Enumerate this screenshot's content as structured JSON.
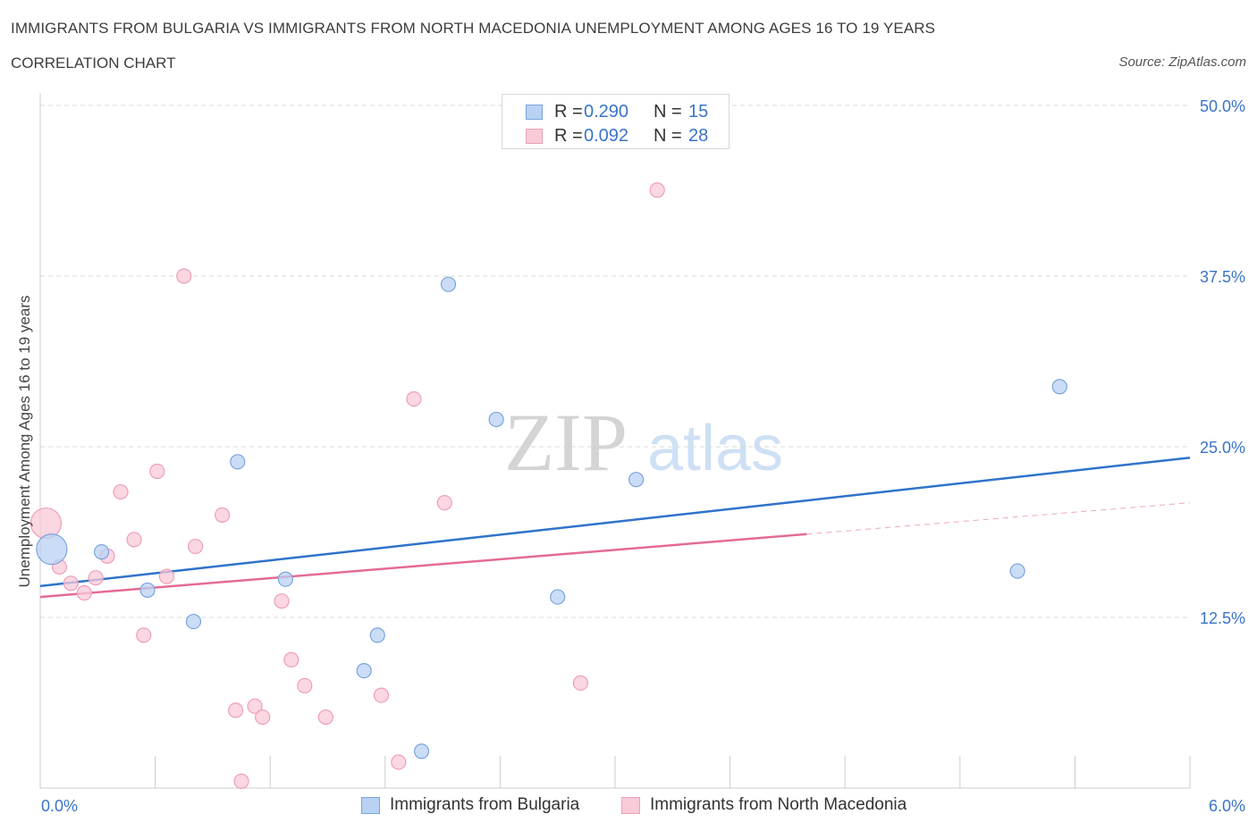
{
  "header": {
    "title": "IMMIGRANTS FROM BULGARIA VS IMMIGRANTS FROM NORTH MACEDONIA UNEMPLOYMENT AMONG AGES 16 TO 19 YEARS",
    "subtitle": "CORRELATION CHART",
    "source": "Source: ZipAtlas.com"
  },
  "watermark": {
    "zip": "ZIP",
    "atlas": "atlas"
  },
  "legend_top": {
    "rows": [
      {
        "r_label": "R =",
        "r_value": "0.290",
        "n_label": "N =",
        "n_value": "15"
      },
      {
        "r_label": "R =",
        "r_value": "0.092",
        "n_label": "N =",
        "n_value": "28"
      }
    ]
  },
  "legend_bottom": {
    "items": [
      {
        "label": "Immigrants from Bulgaria"
      },
      {
        "label": "Immigrants from North Macedonia"
      }
    ]
  },
  "chart_data": {
    "type": "scatter",
    "title": "IMMIGRANTS FROM BULGARIA VS IMMIGRANTS FROM NORTH MACEDONIA UNEMPLOYMENT AMONG AGES 16 TO 19 YEARS",
    "subtitle": "CORRELATION CHART",
    "xlabel": "",
    "ylabel": "Unemployment Among Ages 16 to 19 years",
    "xlim": [
      0,
      6
    ],
    "ylim": [
      0,
      50
    ],
    "x_tick_labels": [
      "0.0%",
      "6.0%"
    ],
    "y_ticks": [
      {
        "value": 12.5,
        "label": "12.5%"
      },
      {
        "value": 25,
        "label": "25.0%"
      },
      {
        "value": 37.5,
        "label": "37.5%"
      },
      {
        "value": 50,
        "label": "50.0%"
      }
    ],
    "grid": true,
    "legend_position": "bottom",
    "colors": {
      "bulgaria_fill": "#b9d1f3",
      "bulgaria_stroke": "#7ba3e0",
      "bulgaria_line": "#2f73cc",
      "macedonia_fill": "#f9cad8",
      "macedonia_stroke": "#ee9fb7",
      "macedonia_line": "#e46b93",
      "axis_label": "#3a74c8",
      "grid": "#d9d9d9"
    },
    "series": [
      {
        "name": "Immigrants from Bulgaria",
        "R": 0.29,
        "N": 15,
        "trend": {
          "x0": 0,
          "y0": 14.8,
          "x1": 6,
          "y1": 24.2
        },
        "points": [
          {
            "x": 0.06,
            "y": 17.5,
            "big": true
          },
          {
            "x": 0.32,
            "y": 17.3
          },
          {
            "x": 0.56,
            "y": 14.5
          },
          {
            "x": 0.8,
            "y": 12.2
          },
          {
            "x": 1.03,
            "y": 23.9
          },
          {
            "x": 1.28,
            "y": 15.3
          },
          {
            "x": 1.69,
            "y": 8.6
          },
          {
            "x": 1.76,
            "y": 11.2
          },
          {
            "x": 1.99,
            "y": 2.7
          },
          {
            "x": 2.13,
            "y": 36.9
          },
          {
            "x": 2.38,
            "y": 27.0
          },
          {
            "x": 2.7,
            "y": 14.0
          },
          {
            "x": 3.11,
            "y": 22.6
          },
          {
            "x": 5.1,
            "y": 15.9
          },
          {
            "x": 5.32,
            "y": 29.4
          }
        ]
      },
      {
        "name": "Immigrants from North Macedonia",
        "R": 0.092,
        "N": 28,
        "trend": {
          "x0": 0,
          "y0": 14.0,
          "x1": 6,
          "y1": 20.9,
          "solid_until": 4.0
        },
        "points": [
          {
            "x": 0.03,
            "y": 19.4,
            "big": true
          },
          {
            "x": 0.1,
            "y": 16.2
          },
          {
            "x": 0.16,
            "y": 15.0
          },
          {
            "x": 0.23,
            "y": 14.3
          },
          {
            "x": 0.29,
            "y": 15.4
          },
          {
            "x": 0.35,
            "y": 17.0
          },
          {
            "x": 0.42,
            "y": 21.7
          },
          {
            "x": 0.49,
            "y": 18.2
          },
          {
            "x": 0.54,
            "y": 11.2
          },
          {
            "x": 0.61,
            "y": 23.2
          },
          {
            "x": 0.66,
            "y": 15.5
          },
          {
            "x": 0.75,
            "y": 37.5
          },
          {
            "x": 0.81,
            "y": 17.7
          },
          {
            "x": 0.95,
            "y": 20.0
          },
          {
            "x": 1.02,
            "y": 5.7
          },
          {
            "x": 1.05,
            "y": 0.5
          },
          {
            "x": 1.12,
            "y": 6.0
          },
          {
            "x": 1.16,
            "y": 5.2
          },
          {
            "x": 1.26,
            "y": 13.7
          },
          {
            "x": 1.31,
            "y": 9.4
          },
          {
            "x": 1.38,
            "y": 7.5
          },
          {
            "x": 1.49,
            "y": 5.2
          },
          {
            "x": 1.78,
            "y": 6.8
          },
          {
            "x": 1.87,
            "y": 1.9
          },
          {
            "x": 1.95,
            "y": 28.5
          },
          {
            "x": 2.11,
            "y": 20.9
          },
          {
            "x": 2.82,
            "y": 7.7
          },
          {
            "x": 3.22,
            "y": 43.8
          }
        ]
      }
    ]
  }
}
